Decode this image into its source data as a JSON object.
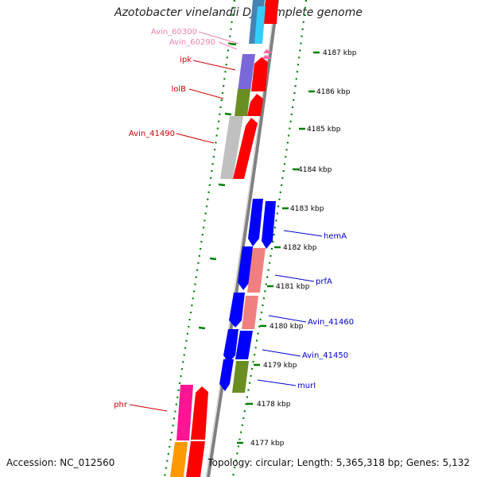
{
  "title": "Azotobacter vinelandii DJ, complete genome",
  "footer": {
    "accession": "Accession: NC_012560",
    "topology": "Topology: circular; Length: 5,365,318 bp; Genes: 5,132"
  },
  "scale_labels": [
    "4187 kbp",
    "4186 kbp",
    "4185 kbp",
    "4184 kbp",
    "4183 kbp",
    "4182 kbp",
    "4181 kbp",
    "4180 kbp",
    "4179 kbp",
    "4178 kbp",
    "4177 kbp"
  ],
  "gene_labels": {
    "left": [
      {
        "text": "Avin_60300",
        "color": "#f080b0"
      },
      {
        "text": "Avin_60290",
        "color": "#f080b0"
      },
      {
        "text": "ipk",
        "color": "#cc0000"
      },
      {
        "text": "lolB",
        "color": "#cc0000"
      },
      {
        "text": "Avin_41490",
        "color": "#cc0000"
      },
      {
        "text": "phr",
        "color": "#cc0000"
      }
    ],
    "right": [
      {
        "text": "hemA",
        "color": "#0000cc"
      },
      {
        "text": "prfA",
        "color": "#0000cc"
      },
      {
        "text": "Avin_41460",
        "color": "#0000cc"
      },
      {
        "text": "Avin_41450",
        "color": "#0000cc"
      },
      {
        "text": "murI",
        "color": "#0000cc"
      }
    ]
  },
  "colors": {
    "backbone": "#808080",
    "tick_dashes": "#008000",
    "forward_gene": "#ff0000",
    "reverse_gene": "#0000ff",
    "cog_purple": "#7b68d8",
    "cog_olive": "#6b8e23",
    "cog_grey": "#c0c0c0",
    "cog_pink": "#f08080",
    "cog_magenta": "#ff1493",
    "cog_orange": "#ff9900",
    "cog_steelblue": "#4682b4",
    "cog_cyan": "#33ccff"
  }
}
